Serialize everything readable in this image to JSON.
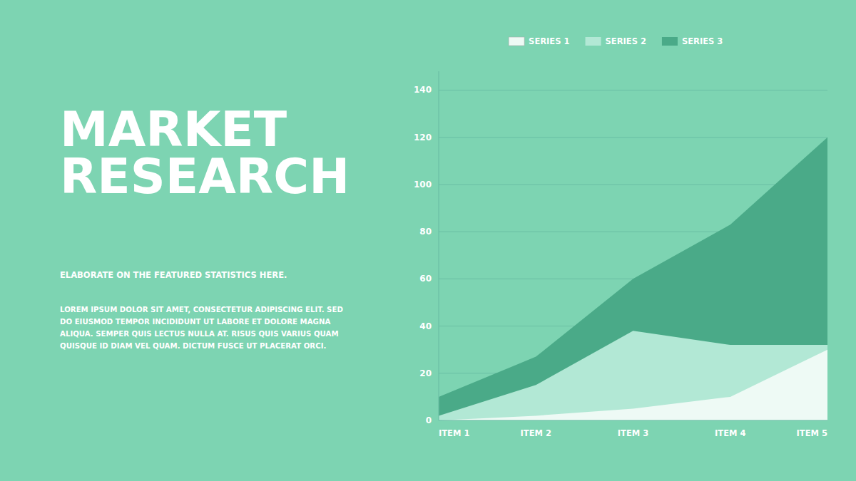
{
  "chart_data": {
    "type": "area",
    "title": "MARKET\nRESEARCH",
    "subtitle": "ELABORATE ON THE FEATURED STATISTICS HERE.",
    "annotations": [
      "LOREM IPSUM DOLOR SIT AMET, CONSECTETUR ADIPISCING ELIT. SED\nDO EIUSMOD TEMPOR INCIDIDUNT UT LABORE ET DOLORE MAGNA\nALIQUA. SEMPER QUIS LECTUS NULLA AT. RISUS QUIS VARIUS QUAM\nQUISQUE ID DIAM VEL QUAM. DICTUM FUSCE UT PLACERAT ORCI."
    ],
    "categories": [
      "ITEM 1",
      "ITEM 2",
      "ITEM 3",
      "ITEM 4",
      "ITEM 5"
    ],
    "series": [
      {
        "name": "SERIES 1",
        "color": "#eefaf5",
        "values": [
          0,
          2,
          5,
          10,
          30
        ]
      },
      {
        "name": "SERIES 2",
        "color": "#b2e8d5",
        "values": [
          2,
          15,
          38,
          32,
          32
        ]
      },
      {
        "name": "SERIES 3",
        "color": "#4aaa88",
        "values": [
          10,
          27,
          60,
          83,
          120
        ]
      }
    ],
    "ylim": [
      0,
      148
    ],
    "yticks": [
      0,
      20,
      40,
      60,
      80,
      100,
      120,
      140
    ],
    "grid": true,
    "legend": "top",
    "stacked": false
  }
}
